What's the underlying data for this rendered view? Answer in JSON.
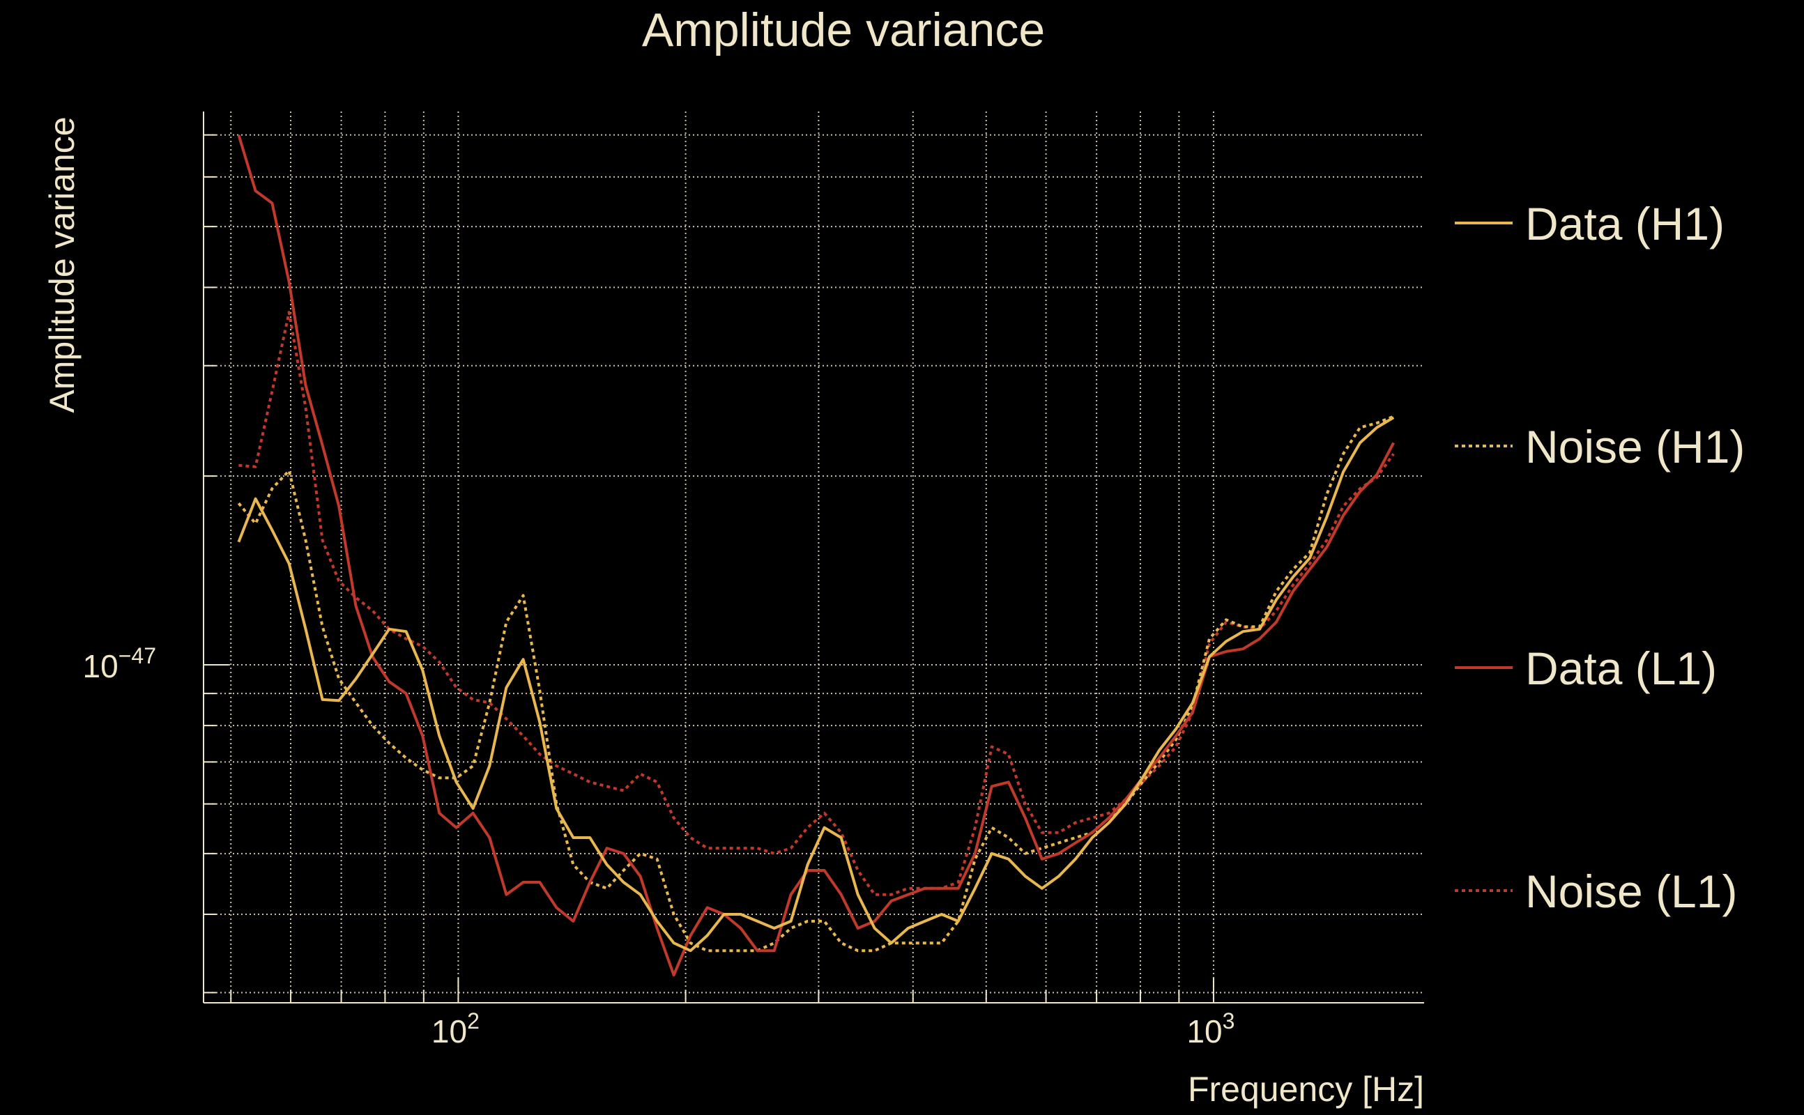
{
  "chart_data": {
    "type": "line",
    "title": "Amplitude variance",
    "xlabel": "Frequency [Hz]",
    "ylabel": "Amplitude variance",
    "xscale": "log",
    "yscale": "log",
    "xlim": [
      46,
      1900
    ],
    "ylim": [
      2.89e-48,
      7.63e-47
    ],
    "grid": true,
    "legend_position": "right",
    "x_ticks": [
      {
        "value": 100,
        "base": "10",
        "exp": "2"
      },
      {
        "value": 1000,
        "base": "10",
        "exp": "3"
      }
    ],
    "y_ticks": [
      {
        "value": 1e-47,
        "base": "10",
        "exp": "−47"
      }
    ],
    "x": [
      51.2,
      53.9,
      56.7,
      59.7,
      62.8,
      66.1,
      69.5,
      73.2,
      77.0,
      81.0,
      85.3,
      89.7,
      94.4,
      99.4,
      104.6,
      110.0,
      115.8,
      121.9,
      128.2,
      134.9,
      142.0,
      149.4,
      157.3,
      165.5,
      174.2,
      183.3,
      192.9,
      203.0,
      213.6,
      224.8,
      236.6,
      248.9,
      262.0,
      275.7,
      290.1,
      305.3,
      321.3,
      338.1,
      355.8,
      374.4,
      394.0,
      414.7,
      436.4,
      459.2,
      483.3,
      508.6,
      535.2,
      563.2,
      592.7,
      623.8,
      656.4,
      690.8,
      727.0,
      765.0,
      805.1,
      847.2,
      891.6,
      938.3,
      987.4,
      1039,
      1094,
      1151,
      1211,
      1274,
      1341,
      1412,
      1485,
      1563,
      1645,
      1731
    ],
    "series": [
      {
        "name": "Data (H1)",
        "color": "#e8b84f",
        "style": "solid",
        "values": [
          1.57e-47,
          1.84e-47,
          1.64e-47,
          1.45e-47,
          1.14e-47,
          8.8e-48,
          8.77e-48,
          9.5e-48,
          1.04e-47,
          1.14e-47,
          1.13e-47,
          9.8e-48,
          7.7e-48,
          6.5e-48,
          5.9e-48,
          6.9e-48,
          9.2e-48,
          1.02e-47,
          8.1e-48,
          5.9e-48,
          5.3e-48,
          5.3e-48,
          4.8e-48,
          4.5e-48,
          4.3e-48,
          3.9e-48,
          3.6e-48,
          3.5e-48,
          3.7e-48,
          4e-48,
          4e-48,
          3.9e-48,
          3.8e-48,
          3.9e-48,
          4.8e-48,
          5.5e-48,
          5.3e-48,
          4.3e-48,
          3.8e-48,
          3.6e-48,
          3.8e-48,
          3.9e-48,
          4e-48,
          3.9e-48,
          4.4e-48,
          5e-48,
          4.9e-48,
          4.6e-48,
          4.4e-48,
          4.6e-48,
          4.9e-48,
          5.3e-48,
          5.6e-48,
          6e-48,
          6.6e-48,
          7.3e-48,
          7.9e-48,
          8.7e-48,
          1.03e-47,
          1.09e-47,
          1.13e-47,
          1.14e-47,
          1.27e-47,
          1.38e-47,
          1.48e-47,
          1.72e-47,
          2.03e-47,
          2.26e-47,
          2.39e-47,
          2.48e-47
        ]
      },
      {
        "name": "Noise (H1)",
        "color": "#e8b84f",
        "style": "dotted",
        "values": [
          1.81e-47,
          1.68e-47,
          1.91e-47,
          2.04e-47,
          1.58e-47,
          1.15e-47,
          9.5e-48,
          8.7e-48,
          8e-48,
          7.5e-48,
          7.1e-48,
          6.8e-48,
          6.6e-48,
          6.6e-48,
          6.9e-48,
          8.7e-48,
          1.17e-47,
          1.29e-47,
          9.1e-48,
          6e-48,
          4.8e-48,
          4.5e-48,
          4.4e-48,
          4.7e-48,
          5e-48,
          4.9e-48,
          4e-48,
          3.6e-48,
          3.5e-48,
          3.5e-48,
          3.5e-48,
          3.5e-48,
          3.6e-48,
          3.8e-48,
          3.9e-48,
          3.9e-48,
          3.6e-48,
          3.5e-48,
          3.5e-48,
          3.6e-48,
          3.6e-48,
          3.6e-48,
          3.6e-48,
          3.9e-48,
          4.9e-48,
          5.5e-48,
          5.3e-48,
          5e-48,
          5.1e-48,
          5.2e-48,
          5.3e-48,
          5.4e-48,
          5.7e-48,
          6e-48,
          6.5e-48,
          7e-48,
          7.6e-48,
          8.6e-48,
          1.1e-47,
          1.18e-47,
          1.15e-47,
          1.15e-47,
          1.31e-47,
          1.42e-47,
          1.51e-47,
          1.87e-47,
          2.17e-47,
          2.39e-47,
          2.43e-47,
          2.49e-47
        ]
      },
      {
        "name": "Data (L1)",
        "color": "#c0392b",
        "style": "solid",
        "values": [
          7e-47,
          5.7e-47,
          5.45e-47,
          4.08e-47,
          2.79e-47,
          2.24e-47,
          1.79e-47,
          1.24e-47,
          1.03e-47,
          9.4e-48,
          9e-48,
          7.7e-48,
          5.8e-48,
          5.5e-48,
          5.8e-48,
          5.3e-48,
          4.3e-48,
          4.5e-48,
          4.5e-48,
          4.1e-48,
          3.9e-48,
          4.5e-48,
          5.1e-48,
          5e-48,
          4.6e-48,
          3.8e-48,
          3.2e-48,
          3.7e-48,
          4.1e-48,
          4e-48,
          3.8e-48,
          3.5e-48,
          3.5e-48,
          4.3e-48,
          4.7e-48,
          4.7e-48,
          4.3e-48,
          3.8e-48,
          3.9e-48,
          4.2e-48,
          4.3e-48,
          4.4e-48,
          4.4e-48,
          4.4e-48,
          5e-48,
          6.4e-48,
          6.5e-48,
          5.7e-48,
          4.9e-48,
          5e-48,
          5.2e-48,
          5.4e-48,
          5.7e-48,
          6.1e-48,
          6.6e-48,
          7.1e-48,
          7.7e-48,
          8.4e-48,
          1.03e-47,
          1.05e-47,
          1.06e-47,
          1.1e-47,
          1.17e-47,
          1.31e-47,
          1.42e-47,
          1.54e-47,
          1.73e-47,
          1.89e-47,
          2.01e-47,
          2.26e-47
        ]
      },
      {
        "name": "Noise (L1)",
        "color": "#c0392b",
        "style": "dotted",
        "values": [
          2.08e-47,
          2.07e-47,
          2.73e-47,
          3.65e-47,
          2.57e-47,
          1.58e-47,
          1.36e-47,
          1.28e-47,
          1.22e-47,
          1.14e-47,
          1.1e-47,
          1.07e-47,
          1.01e-47,
          9.2e-48,
          8.8e-48,
          8.7e-48,
          8.2e-48,
          7.7e-48,
          7.2e-48,
          6.9e-48,
          6.7e-48,
          6.5e-48,
          6.4e-48,
          6.3e-48,
          6.7e-48,
          6.5e-48,
          5.7e-48,
          5.3e-48,
          5.1e-48,
          5.1e-48,
          5.1e-48,
          5.1e-48,
          5e-48,
          5.1e-48,
          5.5e-48,
          5.8e-48,
          5.4e-48,
          4.7e-48,
          4.3e-48,
          4.3e-48,
          4.4e-48,
          4.4e-48,
          4.4e-48,
          4.5e-48,
          5.5e-48,
          7.4e-48,
          7.2e-48,
          6e-48,
          5.4e-48,
          5.4e-48,
          5.6e-48,
          5.7e-48,
          5.8e-48,
          6.1e-48,
          6.5e-48,
          6.9e-48,
          7.4e-48,
          8.4e-48,
          1.08e-47,
          1.17e-47,
          1.15e-47,
          1.14e-47,
          1.22e-47,
          1.34e-47,
          1.45e-47,
          1.58e-47,
          1.79e-47,
          1.91e-47,
          1.99e-47,
          2.17e-47
        ]
      }
    ]
  }
}
